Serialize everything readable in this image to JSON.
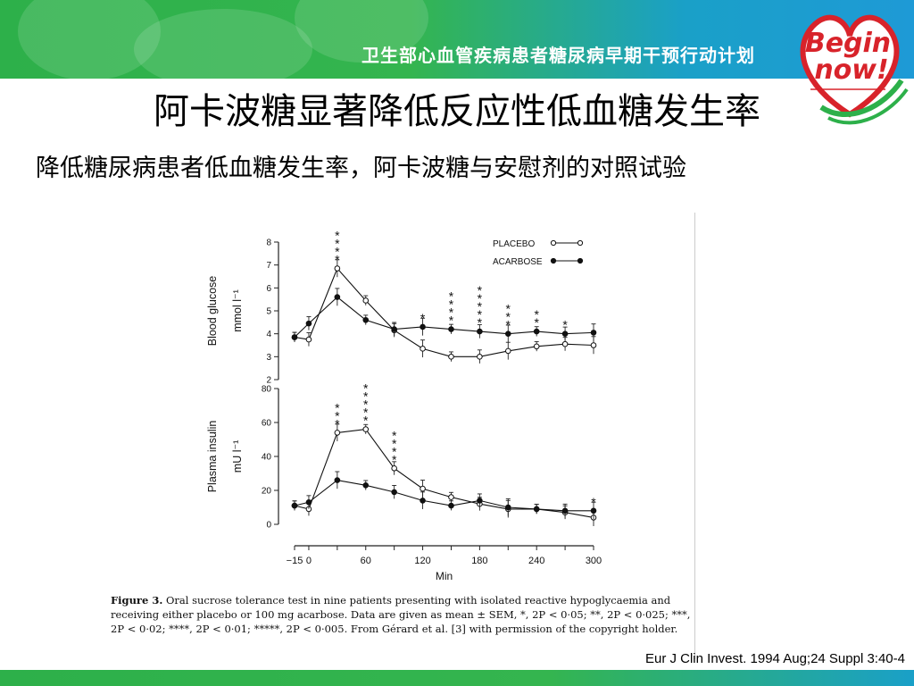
{
  "header": {
    "banner": "卫生部心血管疾病患者糖尿病早期干预行动计划",
    "logo_text_1": "Begin",
    "logo_text_2": "now!"
  },
  "slide": {
    "title": "阿卡波糖显著降低反应性低血糖发生率",
    "subtitle": "降低糖尿病患者低血糖发生率，阿卡波糖与安慰剂的对照试验",
    "citation": "Eur J Clin Invest. 1994 Aug;24 Suppl 3:40-4",
    "caption_label": "Figure 3.",
    "caption_text": "Oral sucrose tolerance test in nine patients presenting with isolated reactive hypoglycaemia and receiving either placebo or 100 mg acarbose. Data are given as mean ± SEM, *, 2P < 0·05; **, 2P < 0·025; ***, 2P < 0·02; ****, 2P < 0·01; *****, 2P < 0·005. From Gérard et al. [3] with permission of the copyright holder."
  },
  "chart_data": [
    {
      "type": "line",
      "ylabel_line1": "Blood glucose",
      "ylabel_line2": "mmol l⁻¹",
      "ylim": [
        2,
        8
      ],
      "yticks": [
        "2",
        "3",
        "4",
        "5",
        "6",
        "7",
        "8"
      ],
      "x": [
        -15,
        0,
        30,
        60,
        90,
        120,
        150,
        180,
        210,
        240,
        270,
        300
      ],
      "legend_placement": "top-right",
      "series": [
        {
          "name": "PLACEBO",
          "marker": "open",
          "values": [
            3.85,
            3.75,
            6.85,
            5.45,
            4.15,
            3.35,
            3.0,
            3.0,
            3.25,
            3.45,
            3.55,
            3.5
          ]
        },
        {
          "name": "ACARBOSE",
          "marker": "filled",
          "values": [
            3.85,
            4.45,
            5.6,
            4.6,
            4.2,
            4.3,
            4.2,
            4.1,
            4.0,
            4.1,
            4.0,
            4.05
          ]
        }
      ],
      "annotations": [
        {
          "x": 30,
          "text": "****"
        },
        {
          "x": 120,
          "text": "*"
        },
        {
          "x": 150,
          "text": "****"
        },
        {
          "x": 180,
          "text": "*****"
        },
        {
          "x": 210,
          "text": "***"
        },
        {
          "x": 240,
          "text": "**"
        },
        {
          "x": 270,
          "text": "*"
        }
      ]
    },
    {
      "type": "line",
      "ylabel_line1": "Plasma insulin",
      "ylabel_line2": "mU l⁻¹",
      "ylim": [
        0,
        80
      ],
      "yticks": [
        "0",
        "20",
        "40",
        "60",
        "80"
      ],
      "x": [
        -15,
        0,
        30,
        60,
        90,
        120,
        150,
        180,
        210,
        240,
        270,
        300
      ],
      "xticks": [
        "−15",
        "0",
        "60",
        "120",
        "180",
        "240",
        "300"
      ],
      "xlabel": "Min",
      "series": [
        {
          "name": "PLACEBO",
          "marker": "open",
          "values": [
            11,
            9,
            54,
            56,
            33,
            21,
            16,
            12,
            9,
            9,
            7,
            4
          ]
        },
        {
          "name": "ACARBOSE",
          "marker": "filled",
          "values": [
            11,
            13,
            26,
            23,
            19,
            14,
            11,
            14,
            10,
            9,
            8,
            8
          ]
        }
      ],
      "annotations": [
        {
          "x": 30,
          "text": "***"
        },
        {
          "x": 60,
          "text": "*****"
        },
        {
          "x": 90,
          "text": "****"
        },
        {
          "x": 300,
          "text": "*"
        }
      ]
    }
  ],
  "colors": {
    "green": "#2db04a",
    "blue": "#1e9ad6",
    "logo_red": "#d8232a"
  }
}
